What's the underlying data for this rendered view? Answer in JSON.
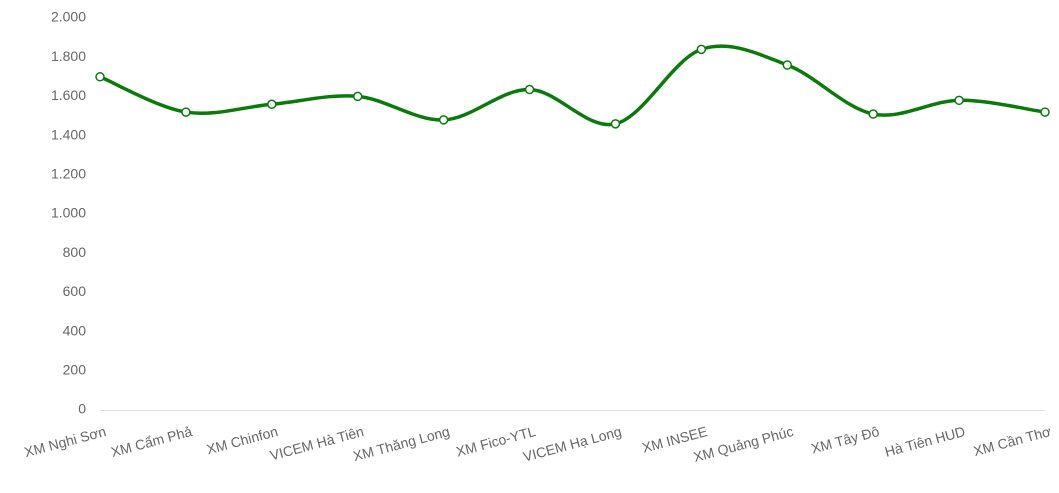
{
  "chart_data": {
    "type": "line",
    "categories": [
      "XM Nghi Sơn",
      "XM Cẩm Phả",
      "XM Chinfon",
      "VICEM Hà Tiên",
      "XM Thăng Long",
      "XM Fico-YTL",
      "VICEM Hạ Long",
      "XM INSEE",
      "XM Quảng Phúc",
      "XM Tây Đô",
      "Hà Tiên HUD",
      "XM Cần Thơ"
    ],
    "values": [
      1700,
      1520,
      1560,
      1600,
      1480,
      1635,
      1460,
      1840,
      1760,
      1510,
      1580,
      1520
    ],
    "color": "#0a7a0a",
    "ylim": [
      0,
      2000
    ],
    "yticks": [
      0,
      200,
      400,
      600,
      800,
      {
        "value": 1000,
        "label": "1.000"
      },
      {
        "value": 1200,
        "label": "1.200"
      },
      {
        "value": 1400,
        "label": "1.400"
      },
      {
        "value": 1600,
        "label": "1.600"
      },
      {
        "value": 1800,
        "label": "1.800"
      },
      {
        "value": 2000,
        "label": "2.000"
      }
    ],
    "grid": false,
    "smooth": true
  }
}
